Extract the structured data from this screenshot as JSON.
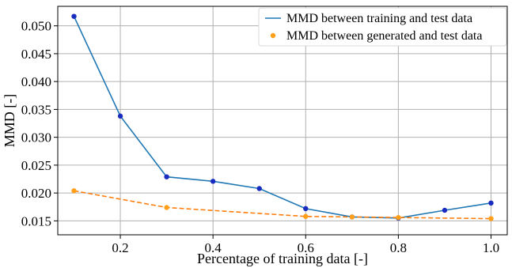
{
  "chart_data": {
    "type": "line",
    "xlabel": "Percentage of training data [-]",
    "ylabel": "MMD [-]",
    "xlim": [
      0.065,
      1.035
    ],
    "ylim": [
      0.0125,
      0.0535
    ],
    "xticks": [
      0.2,
      0.4,
      0.6,
      0.8,
      1.0
    ],
    "xtick_labels": [
      "0.2",
      "0.4",
      "0.6",
      "0.8",
      "1.0"
    ],
    "yticks": [
      0.015,
      0.02,
      0.025,
      0.03,
      0.035,
      0.04,
      0.045,
      0.05
    ],
    "ytick_labels": [
      "0.015",
      "0.020",
      "0.025",
      "0.030",
      "0.035",
      "0.040",
      "0.045",
      "0.050"
    ],
    "grid": true,
    "legend_position": "top-right",
    "series": [
      {
        "name": "MMD between training and test data",
        "x": [
          0.1,
          0.2,
          0.3,
          0.4,
          0.5,
          0.6,
          0.7,
          0.8,
          0.9,
          1.0
        ],
        "y": [
          0.0517,
          0.0338,
          0.0229,
          0.0221,
          0.0208,
          0.0172,
          0.0157,
          0.0155,
          0.0169,
          0.0182
        ],
        "line_color": "#1f77b4",
        "marker_color": "#1a2bbf",
        "line_style": "solid"
      },
      {
        "name": "MMD between generated and test data",
        "x": [
          0.1,
          0.3,
          0.6,
          0.7,
          0.8,
          1.0
        ],
        "y": [
          0.0204,
          0.0174,
          0.0158,
          0.0157,
          0.0156,
          0.0154
        ],
        "line_color": "#ff7f0e",
        "marker_color": "#ff9f1a",
        "line_style": "dashed"
      }
    ]
  }
}
